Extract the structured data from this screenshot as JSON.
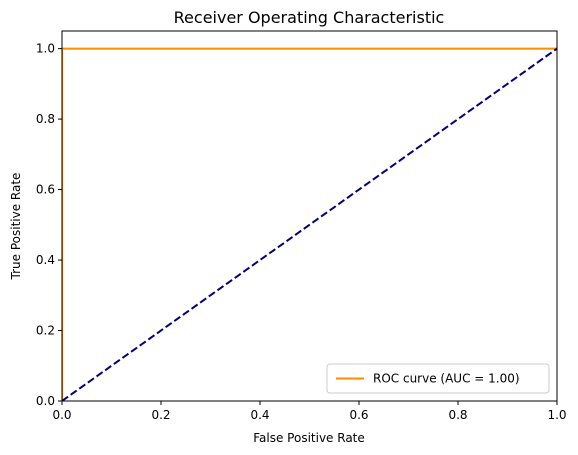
{
  "chart_data": {
    "type": "line",
    "title": "Receiver Operating Characteristic",
    "xlabel": "False Positive Rate",
    "ylabel": "True Positive Rate",
    "xlim": [
      0.0,
      1.0
    ],
    "ylim": [
      0.0,
      1.05
    ],
    "xticks": [
      "0.0",
      "0.2",
      "0.4",
      "0.6",
      "0.8",
      "1.0"
    ],
    "yticks": [
      "0.0",
      "0.2",
      "0.4",
      "0.6",
      "0.8",
      "1.0"
    ],
    "grid": false,
    "legend_position": "lower-right",
    "series": [
      {
        "name": "ROC curve (AUC = 1.00)",
        "color": "#ff8c00",
        "style": "solid",
        "x": [
          0.0,
          0.0,
          1.0
        ],
        "y": [
          0.0,
          1.0,
          1.0
        ]
      },
      {
        "color": "#000080",
        "style": "dashed",
        "x": [
          0.0,
          1.0
        ],
        "y": [
          0.0,
          1.0
        ]
      }
    ]
  }
}
